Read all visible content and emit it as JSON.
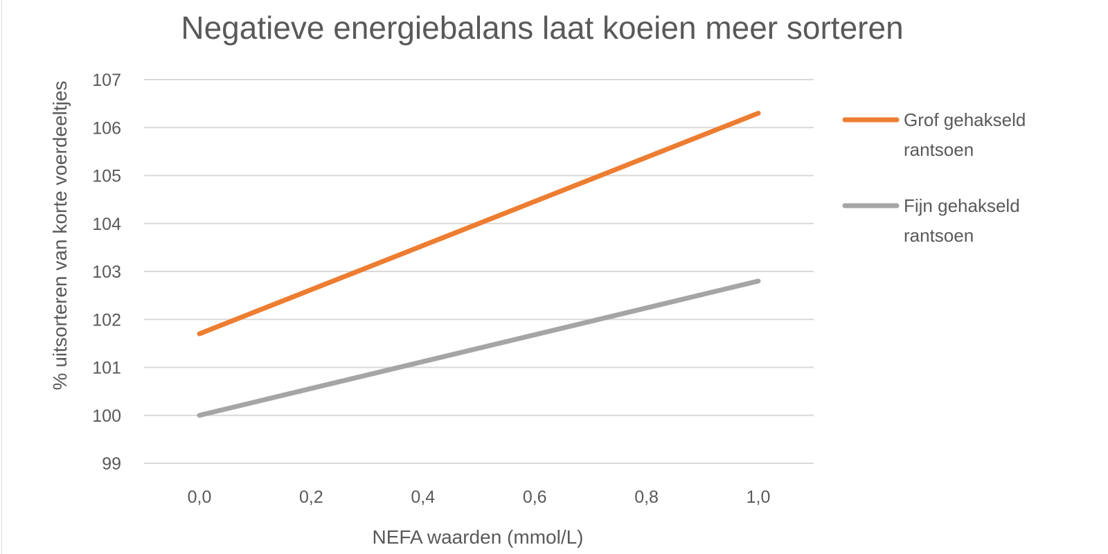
{
  "chart_data": {
    "type": "line",
    "title": "Negatieve energiebalans laat koeien meer sorteren",
    "xlabel": "NEFA waarden (mmol/L)",
    "ylabel": "% uitsorteren van korte voerdeeltjes",
    "x": [
      0.0,
      1.0
    ],
    "x_ticks": [
      "0,0",
      "0,2",
      "0,4",
      "0,6",
      "0,8",
      "1,0"
    ],
    "x_tick_values": [
      0.0,
      0.2,
      0.4,
      0.6,
      0.8,
      1.0
    ],
    "xlim": [
      -0.1,
      1.1
    ],
    "y_ticks": [
      "99",
      "100",
      "101",
      "102",
      "103",
      "104",
      "105",
      "106",
      "107"
    ],
    "y_tick_values": [
      99,
      100,
      101,
      102,
      103,
      104,
      105,
      106,
      107
    ],
    "ylim": [
      99,
      107
    ],
    "grid": true,
    "legend_position": "right",
    "series": [
      {
        "name_lines": [
          "Grof gehakseld",
          "rantsoen"
        ],
        "name": "Grof gehakseld rantsoen",
        "color": "#ED7D31",
        "values": [
          101.7,
          106.3
        ]
      },
      {
        "name_lines": [
          "Fijn gehakseld",
          "rantsoen"
        ],
        "name": "Fijn gehakseld rantsoen",
        "color": "#A5A5A5",
        "values": [
          100.0,
          102.8
        ]
      }
    ]
  }
}
